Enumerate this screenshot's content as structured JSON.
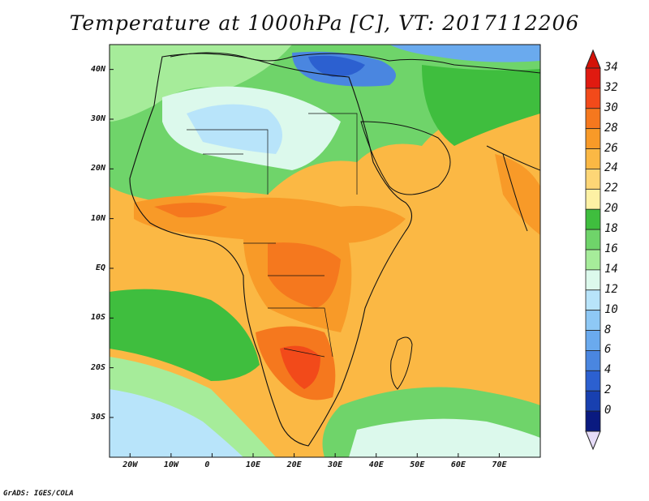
{
  "title": "Temperature at 1000hPa [C], VT: 2017112206",
  "credit": "GrADS: IGES/COLA",
  "map": {
    "projection": "lat-lon",
    "lon_range": [
      -25,
      80
    ],
    "lat_range": [
      -38,
      45
    ],
    "lat_ticks": [
      {
        "value": 40,
        "label": "40N"
      },
      {
        "value": 30,
        "label": "30N"
      },
      {
        "value": 20,
        "label": "20N"
      },
      {
        "value": 10,
        "label": "10N"
      },
      {
        "value": 0,
        "label": "EQ"
      },
      {
        "value": -10,
        "label": "10S"
      },
      {
        "value": -20,
        "label": "20S"
      },
      {
        "value": -30,
        "label": "30S"
      }
    ],
    "lon_ticks": [
      {
        "value": -20,
        "label": "20W"
      },
      {
        "value": -10,
        "label": "10W"
      },
      {
        "value": 0,
        "label": "0"
      },
      {
        "value": 10,
        "label": "10E"
      },
      {
        "value": 20,
        "label": "20E"
      },
      {
        "value": 30,
        "label": "30E"
      },
      {
        "value": 40,
        "label": "40E"
      },
      {
        "value": 50,
        "label": "50E"
      },
      {
        "value": 60,
        "label": "60E"
      },
      {
        "value": 70,
        "label": "70E"
      }
    ]
  },
  "colorbar": {
    "labels": [
      "34",
      "32",
      "30",
      "28",
      "26",
      "24",
      "22",
      "20",
      "18",
      "16",
      "14",
      "12",
      "10",
      "8",
      "6",
      "4",
      "2",
      "0"
    ],
    "colors": [
      "#e01a10",
      "#f24a1a",
      "#f5781e",
      "#f89a28",
      "#fbb844",
      "#fdd676",
      "#fdf1a4",
      "#3fbe3e",
      "#6fd46a",
      "#a6ec9a",
      "#dcf9ec",
      "#b8e4fa",
      "#8ec8f5",
      "#6aaaee",
      "#4a86e0",
      "#2c60d0",
      "#1840b0",
      "#0a1a80"
    ],
    "top_arrow_color": "#d41208",
    "bottom_arrow_color": "#e6dcf8"
  }
}
